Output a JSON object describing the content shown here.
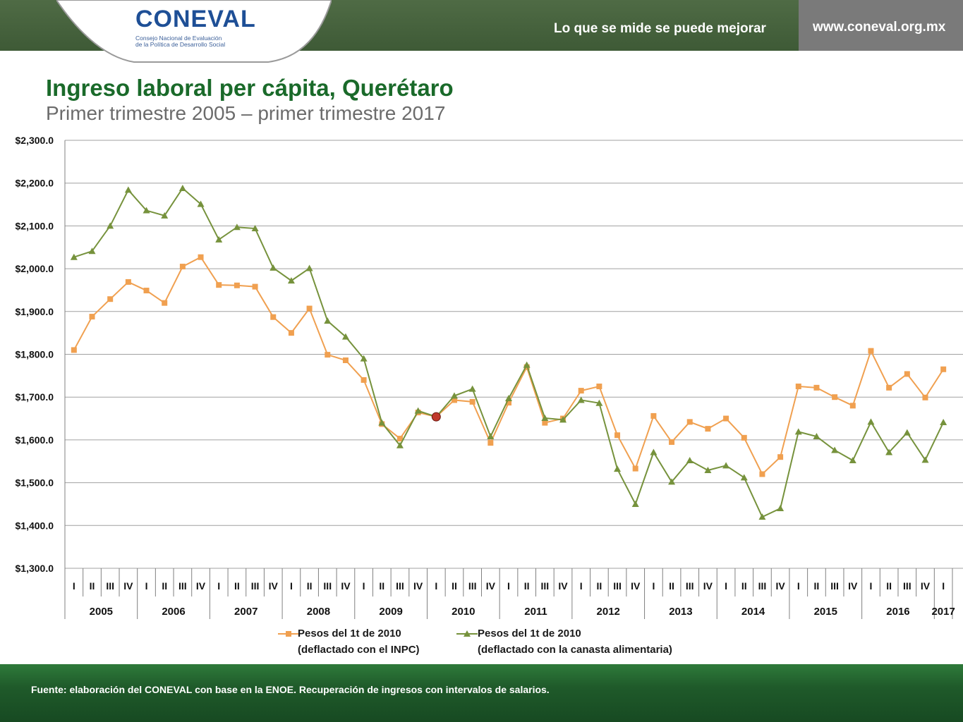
{
  "header": {
    "logo_text": "CONEVAL",
    "logo_subtitle_1": "Consejo Nacional de Evaluación",
    "logo_subtitle_2": "de la Política de Desarrollo Social",
    "slogan": "Lo que se mide se puede mejorar",
    "url": "www.coneval.org.mx"
  },
  "colors": {
    "inpc": "#f0a050",
    "canasta": "#76923c",
    "title": "#1a6a2a",
    "highlight": "#c0392b"
  },
  "footer": {
    "source": "Fuente: elaboración del CONEVAL con base en la ENOE. Recuperación de ingresos con intervalos de salarios."
  },
  "chart_data": {
    "type": "line",
    "title": "Ingreso laboral per cápita, Querétaro",
    "subtitle": "Primer trimestre 2005 – primer trimestre 2017",
    "ylim": [
      1300,
      2300
    ],
    "yticks": [
      "$1,300.0",
      "$1,400.0",
      "$1,500.0",
      "$1,600.0",
      "$1,700.0",
      "$1,800.0",
      "$1,900.0",
      "$2,000.0",
      "$2,100.0",
      "$2,200.0",
      "$2,300.0"
    ],
    "quarters": [
      "I",
      "II",
      "III",
      "IV",
      "I",
      "II",
      "III",
      "IV",
      "I",
      "II",
      "III",
      "IV",
      "I",
      "II",
      "III",
      "IV",
      "I",
      "II",
      "III",
      "IV",
      "I",
      "II",
      "III",
      "IV",
      "I",
      "II",
      "III",
      "IV",
      "I",
      "II",
      "III",
      "IV",
      "I",
      "II",
      "III",
      "IV",
      "I",
      "II",
      "III",
      "IV",
      "I",
      "II",
      "III",
      "IV",
      "I",
      "II",
      "III",
      "IV",
      "I"
    ],
    "years": [
      "2005",
      "2006",
      "2007",
      "2008",
      "2009",
      "2010",
      "2011",
      "2012",
      "2013",
      "2014",
      "2015",
      "2016",
      "2017"
    ],
    "series": [
      {
        "name_line1": "Pesos del 1t de 2010",
        "name_line2": "(deflactado con el INPC)",
        "marker": "square",
        "values": [
          1810,
          1888,
          1929,
          1969,
          1949,
          1920,
          2005,
          2027,
          1962,
          1961,
          1958,
          1887,
          1850,
          1907,
          1799,
          1786,
          1740,
          1637,
          1603,
          1664,
          1654,
          1693,
          1689,
          1593,
          1687,
          1770,
          1640,
          1650,
          1715,
          1725,
          1611,
          1533,
          1656,
          1595,
          1642,
          1626,
          1650,
          1605,
          1520,
          1560,
          1725,
          1722,
          1700,
          1680,
          1808,
          1722,
          1754,
          1699,
          1765
        ]
      },
      {
        "name_line1": "Pesos del 1t de 2010",
        "name_line2": "(deflactado con la canasta alimentaria)",
        "marker": "triangle",
        "values": [
          2027,
          2041,
          2100,
          2184,
          2136,
          2124,
          2188,
          2151,
          2068,
          2097,
          2094,
          2002,
          1972,
          2001,
          1878,
          1841,
          1790,
          1640,
          1587,
          1668,
          1654,
          1703,
          1719,
          1608,
          1697,
          1775,
          1651,
          1647,
          1693,
          1686,
          1532,
          1450,
          1571,
          1502,
          1552,
          1529,
          1540,
          1512,
          1420,
          1440,
          1619,
          1608,
          1576,
          1552,
          1642,
          1571,
          1617,
          1553,
          1641
        ]
      }
    ],
    "highlight_index": 20
  }
}
